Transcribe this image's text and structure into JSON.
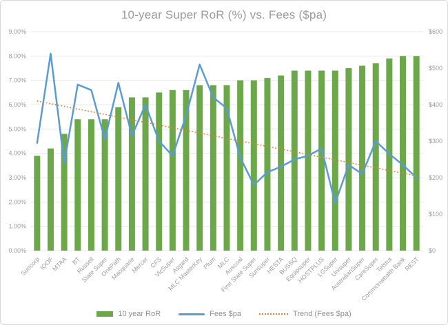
{
  "title": "10-year Super RoR (%) vs. Fees ($pa)",
  "legend": [
    {
      "label": "10 year RoR",
      "swatch": "bar-swatch",
      "color": "#6CA74A"
    },
    {
      "label": "Fees $pa",
      "swatch": "line-swatch",
      "color": "#5B9BD5"
    },
    {
      "label": "Trend (Fees $pa)",
      "swatch": "dotted-line-swatch",
      "color": "#ED7D31"
    }
  ],
  "chart_data": {
    "type": "combo-bar-line",
    "title": "10-year Super RoR (%) vs. Fees ($pa)",
    "categories": [
      "Suncorp",
      "IOOF",
      "MTAA",
      "BT",
      "Russell",
      "State Super",
      "OnePath",
      "Macquarie",
      "Mercer",
      "CFS",
      "VicSuper",
      "Asgard",
      "MLC MasterKey",
      "Plum",
      "MLC",
      "Auscoal",
      "First State Super",
      "Sunsuper",
      "HESTA",
      "BUSSQ",
      "Equipsuper",
      "HOSTPLUS",
      "LGSuper",
      "Unisuper",
      "AustralianSuper",
      "CareSuper",
      "Telstra",
      "Commonwealth Bank",
      "REST"
    ],
    "series": [
      {
        "name": "10 year RoR",
        "type": "bar",
        "axis": "left",
        "color": "#6CA74A",
        "values": [
          3.9,
          4.2,
          4.8,
          5.4,
          5.4,
          5.4,
          5.9,
          6.3,
          6.3,
          6.5,
          6.6,
          6.6,
          6.8,
          6.8,
          6.8,
          7.0,
          7.0,
          7.1,
          7.2,
          7.4,
          7.4,
          7.4,
          7.4,
          7.5,
          7.6,
          7.7,
          7.9,
          8.0,
          8.0
        ]
      },
      {
        "name": "Fees $pa",
        "type": "line",
        "axis": "right",
        "color": "#5B9BD5",
        "values": [
          295,
          540,
          240,
          455,
          440,
          305,
          460,
          315,
          400,
          300,
          260,
          370,
          510,
          420,
          390,
          255,
          180,
          215,
          230,
          250,
          260,
          280,
          130,
          235,
          210,
          300,
          265,
          235,
          200
        ]
      },
      {
        "name": "Trend (Fees $pa)",
        "type": "trendline-dotted",
        "axis": "right",
        "color": "#ED7D31",
        "start_value": 410,
        "end_value": 205
      }
    ],
    "left_axis": {
      "min": 0,
      "max": 9,
      "ticks": [
        "0.00%",
        "1.00%",
        "2.00%",
        "3.00%",
        "4.00%",
        "5.00%",
        "6.00%",
        "7.00%",
        "8.00%",
        "9.00%"
      ]
    },
    "right_axis": {
      "min": 0,
      "max": 600,
      "ticks": [
        "$0",
        "$100",
        "$200",
        "$300",
        "$400",
        "$500",
        "$600"
      ]
    },
    "grid": true,
    "grid_color": "#e8e8e8",
    "legend_position": "bottom"
  }
}
